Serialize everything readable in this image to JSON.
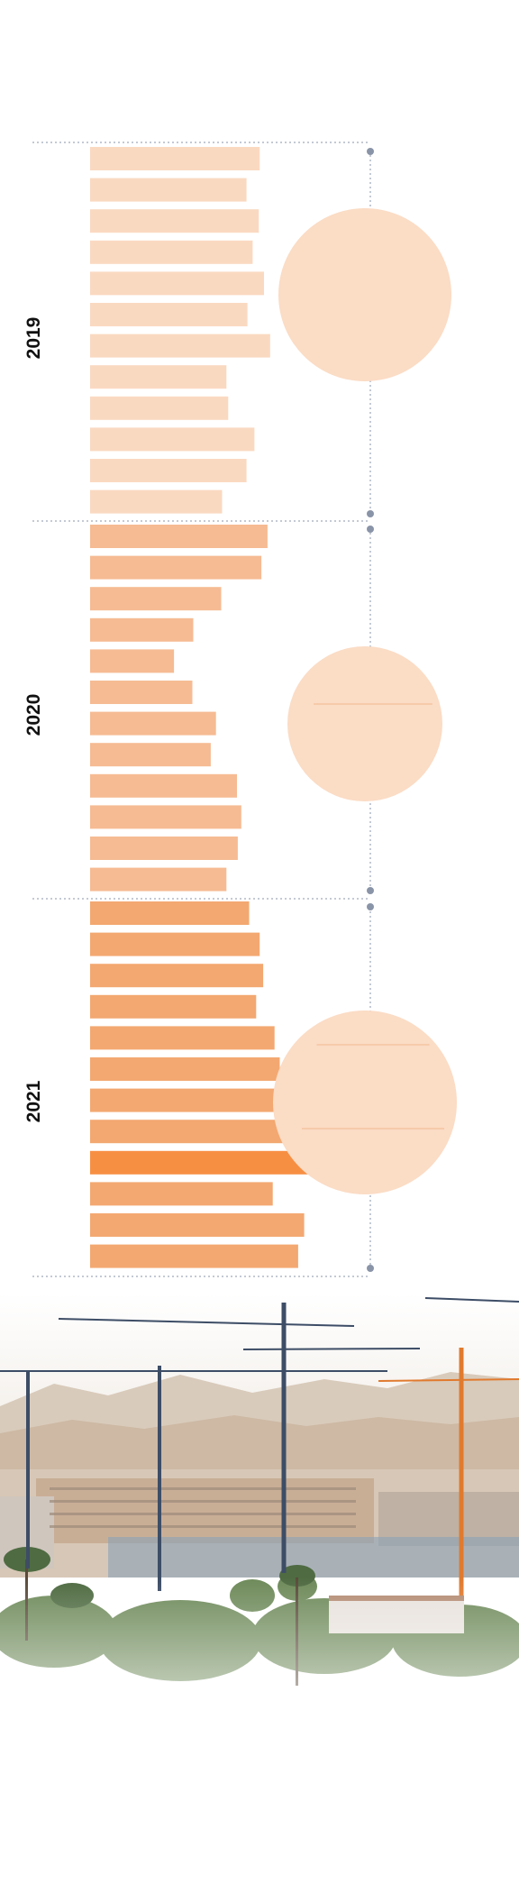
{
  "chart_data": {
    "type": "bar",
    "orientation": "horizontal",
    "grid": false,
    "legend": "none",
    "groups": [
      {
        "label": "2019",
        "color": "#fad9c1",
        "values": [
          19.4,
          17.9,
          19.3,
          18.6,
          19.9,
          18.0,
          20.6,
          15.6,
          15.8,
          18.8,
          17.9,
          15.1
        ]
      },
      {
        "label": "2020",
        "color": "#f6bb93",
        "values": [
          20.3,
          19.6,
          15.0,
          11.8,
          9.6,
          11.7,
          14.4,
          13.8,
          16.8,
          17.3,
          16.9,
          15.6
        ]
      },
      {
        "label": "2021",
        "color": "#f3a871",
        "highlight_color": "#f78f43",
        "highlight_index": 8,
        "values": [
          18.2,
          19.4,
          19.8,
          19.0,
          21.1,
          21.7,
          23.1,
          22.7,
          25.9,
          20.9,
          24.5,
          23.8
        ]
      }
    ],
    "circle_color": "#fbdcc5",
    "circle_line_color": "#f1b88f"
  },
  "icons": [
    "construction-cranes-photo"
  ]
}
